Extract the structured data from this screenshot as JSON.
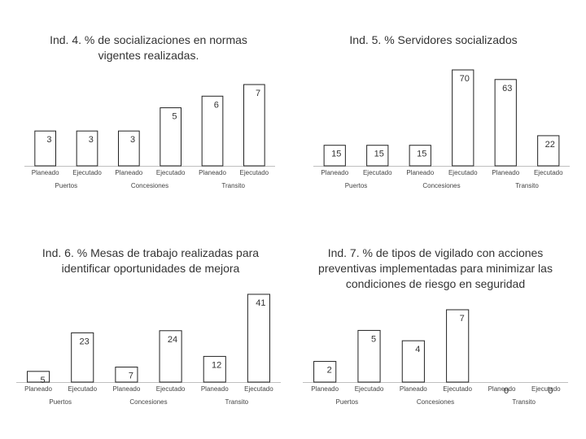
{
  "chart_data": [
    {
      "type": "bar",
      "title": "Ind. 4. % de socializaciones en normas vigentes realizadas.",
      "groups": [
        "Puertos",
        "Concesiones",
        "Transito"
      ],
      "categories": [
        "Planeado",
        "Ejecutado",
        "Planeado",
        "Ejecutado",
        "Planeado",
        "Ejecutado"
      ],
      "values": [
        3,
        3,
        3,
        5,
        6,
        7
      ],
      "ylim": [
        0,
        7
      ]
    },
    {
      "type": "bar",
      "title": "Ind. 5. % Servidores socializados",
      "groups": [
        "Puertos",
        "Concesiones",
        "Transito"
      ],
      "categories": [
        "Planeado",
        "Ejecutado",
        "Planeado",
        "Ejecutado",
        "Planeado",
        "Ejecutado"
      ],
      "values": [
        15,
        15,
        15,
        70,
        63,
        22
      ],
      "ylim": [
        0,
        70
      ]
    },
    {
      "type": "bar",
      "title": "Ind. 6. % Mesas de trabajo realizadas para identificar oportunidades de mejora",
      "groups": [
        "Puertos",
        "Concesiones",
        "Transito"
      ],
      "categories": [
        "Planeado",
        "Ejecutado",
        "Planeado",
        "Ejecutado",
        "Planeado",
        "Ejecutado"
      ],
      "values": [
        5,
        23,
        7,
        24,
        12,
        41
      ],
      "ylim": [
        0,
        41
      ]
    },
    {
      "type": "bar",
      "title": "Ind. 7. % de tipos de vigilado con acciones preventivas implementadas para minimizar las condiciones de riesgo en seguridad",
      "groups": [
        "Puertos",
        "Concesiones",
        "Transito"
      ],
      "categories": [
        "Planeado",
        "Ejecutado",
        "Planeado",
        "Ejecutado",
        "Planeado",
        "Ejecutado"
      ],
      "values": [
        2,
        5,
        4,
        7,
        0,
        0
      ],
      "ylim": [
        0,
        7
      ]
    }
  ]
}
